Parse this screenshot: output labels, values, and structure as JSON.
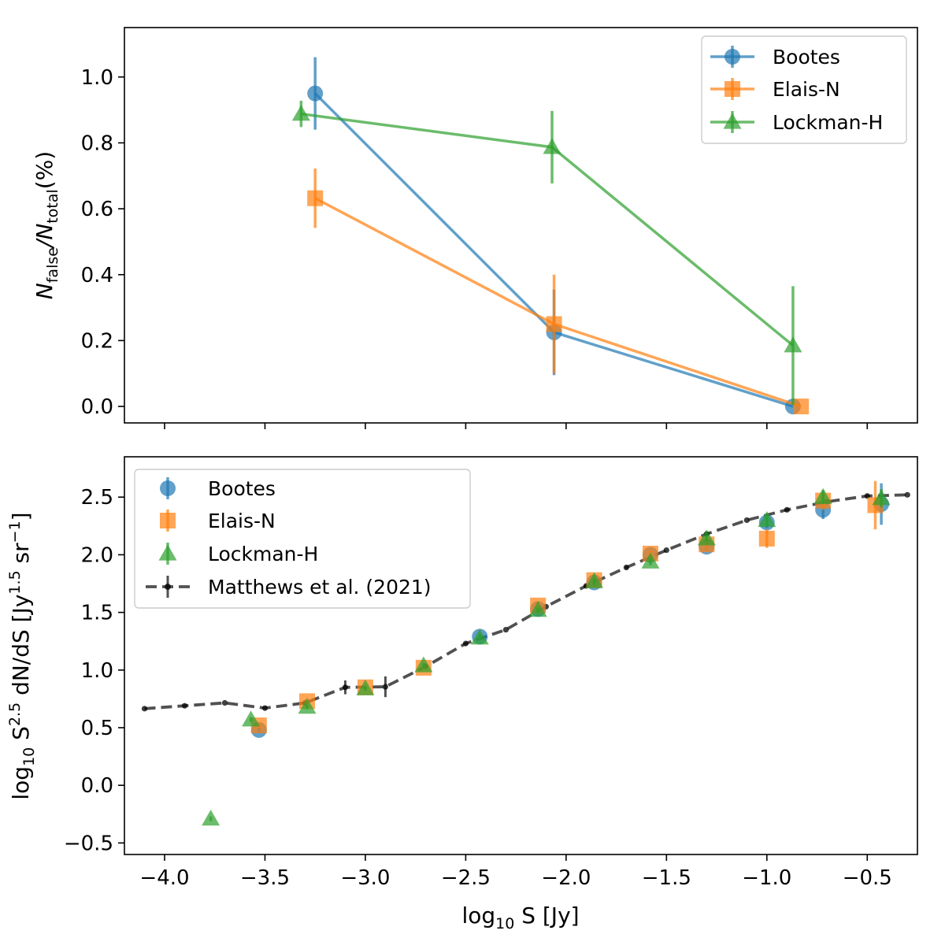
{
  "colors": {
    "bootes": "#1f77b4",
    "elais": "#ff7f0e",
    "lockman": "#2ca02c",
    "matthews": "#333333"
  },
  "chart_data": [
    {
      "type": "line",
      "title": "",
      "xlabel": "",
      "ylabel": {
        "base": "N",
        "sub1": "false",
        "slash": "/N",
        "sub2": "total",
        "unit": "(%)"
      },
      "xlim": [
        -4.2,
        -0.25
      ],
      "ylim": [
        -0.05,
        1.15
      ],
      "x_ticks": [
        -4.0,
        -3.5,
        -3.0,
        -2.5,
        -2.0,
        -1.5,
        -1.0,
        -0.5
      ],
      "y_ticks": [
        0.0,
        0.2,
        0.4,
        0.6,
        0.8,
        1.0
      ],
      "y_tick_labels": [
        "0.0",
        "0.2",
        "0.4",
        "0.6",
        "0.8",
        "1.0"
      ],
      "legend_position": "top-right",
      "series": [
        {
          "name": "Bootes",
          "marker": "circle",
          "color_key": "bootes",
          "x": [
            -3.25,
            -2.06,
            -0.87
          ],
          "y": [
            0.95,
            0.225,
            0.0
          ],
          "yerr": [
            0.11,
            0.13,
            0.0
          ]
        },
        {
          "name": "Elais-N",
          "marker": "square",
          "color_key": "elais",
          "x": [
            -3.25,
            -2.06,
            -0.83
          ],
          "y": [
            0.632,
            0.25,
            0.0
          ],
          "yerr": [
            0.09,
            0.15,
            0.0
          ]
        },
        {
          "name": "Lockman-H",
          "marker": "triangle",
          "color_key": "lockman",
          "x": [
            -3.32,
            -2.07,
            -0.87
          ],
          "y": [
            0.888,
            0.787,
            0.185
          ],
          "yerr": [
            0.04,
            0.11,
            0.18
          ]
        }
      ]
    },
    {
      "type": "scatter",
      "title": "",
      "xlabel": {
        "base": "log",
        "sub": "10",
        "rest": " S [Jy]"
      },
      "ylabel": {
        "p1": "log",
        "sub": "10",
        "p2": " S",
        "sup1": "2.5",
        "p3": " dN/dS [Jy",
        "sup2": "1.5",
        "p4": " sr",
        "sup3": "−1",
        "p5": "]"
      },
      "xlim": [
        -4.2,
        -0.25
      ],
      "ylim": [
        -0.6,
        2.85
      ],
      "x_ticks": [
        -4.0,
        -3.5,
        -3.0,
        -2.5,
        -2.0,
        -1.5,
        -1.0,
        -0.5
      ],
      "x_tick_labels": [
        "−4.0",
        "−3.5",
        "−3.0",
        "−2.5",
        "−2.0",
        "−1.5",
        "−1.0",
        "−0.5"
      ],
      "y_ticks": [
        -0.5,
        0.0,
        0.5,
        1.0,
        1.5,
        2.0,
        2.5
      ],
      "y_tick_labels": [
        "−0.5",
        "0.0",
        "0.5",
        "1.0",
        "1.5",
        "2.0",
        "2.5"
      ],
      "legend_position": "top-left",
      "series": [
        {
          "name": "Bootes",
          "marker": "circle",
          "color_key": "bootes",
          "x": [
            -3.53,
            -2.43,
            -2.14,
            -1.86,
            -1.58,
            -1.3,
            -1.0,
            -0.72,
            -0.43
          ],
          "y": [
            0.48,
            1.29,
            1.53,
            1.76,
            2.0,
            2.07,
            2.28,
            2.39,
            2.44
          ],
          "yerr": [
            0.02,
            0.02,
            0.02,
            0.03,
            0.03,
            0.03,
            0.05,
            0.08,
            0.18
          ]
        },
        {
          "name": "Elais-N",
          "marker": "square",
          "color_key": "elais",
          "x": [
            -3.53,
            -3.29,
            -3.0,
            -2.71,
            -2.14,
            -1.86,
            -1.58,
            -1.3,
            -1.0,
            -0.72,
            -0.46
          ],
          "y": [
            0.52,
            0.73,
            0.85,
            1.02,
            1.56,
            1.78,
            2.01,
            2.09,
            2.14,
            2.47,
            2.43
          ],
          "yerr": [
            0.02,
            0.02,
            0.02,
            0.02,
            0.02,
            0.03,
            0.03,
            0.04,
            0.08,
            0.08,
            0.21
          ]
        },
        {
          "name": "Lockman-H",
          "marker": "triangle",
          "color_key": "lockman",
          "x": [
            -3.77,
            -3.57,
            -3.29,
            -3.0,
            -2.71,
            -2.43,
            -2.14,
            -1.86,
            -1.58,
            -1.3,
            -1.0,
            -0.72,
            -0.43
          ],
          "y": [
            -0.29,
            0.57,
            0.68,
            0.84,
            1.04,
            1.28,
            1.52,
            1.77,
            1.94,
            2.14,
            2.3,
            2.5,
            2.49
          ],
          "yerr": [
            0.02,
            0.02,
            0.02,
            0.02,
            0.02,
            0.02,
            0.02,
            0.03,
            0.03,
            0.03,
            0.05,
            0.06,
            0.08
          ]
        },
        {
          "name": "Matthews et al. (2021)",
          "marker": "dot-dashed",
          "color_key": "matthews",
          "x": [
            -4.1,
            -3.9,
            -3.7,
            -3.5,
            -3.3,
            -3.1,
            -2.9,
            -2.7,
            -2.5,
            -2.3,
            -2.1,
            -1.9,
            -1.7,
            -1.5,
            -1.3,
            -1.1,
            -0.9,
            -0.7,
            -0.5,
            -0.3
          ],
          "y": [
            0.665,
            0.69,
            0.715,
            0.67,
            0.715,
            0.85,
            0.855,
            1.03,
            1.23,
            1.35,
            1.55,
            1.73,
            1.89,
            2.04,
            2.18,
            2.3,
            2.39,
            2.46,
            2.51,
            2.52
          ],
          "yerr": [
            0.01,
            0.01,
            0.01,
            0.01,
            0.01,
            0.06,
            0.09,
            0.01,
            0.01,
            0.01,
            0.01,
            0.01,
            0.01,
            0.01,
            0.01,
            0.01,
            0.01,
            0.01,
            0.01,
            0.01
          ]
        }
      ]
    }
  ]
}
